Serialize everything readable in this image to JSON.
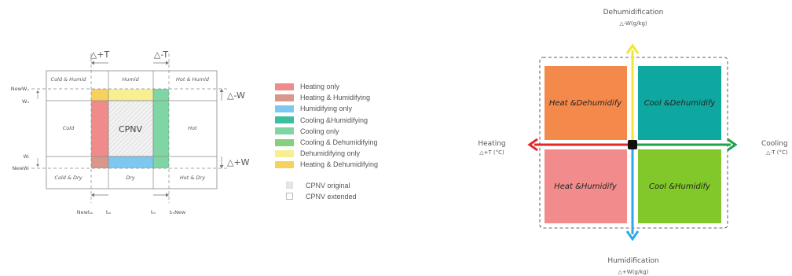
{
  "left_diagram": {
    "delta_plus_t": "△+T",
    "delta_minus_t": "△-T",
    "delta_minus_w": "△-W",
    "delta_plus_w": "△+W",
    "zones": {
      "cold_humid": "Cold & Humid",
      "humid": "Humid",
      "hot_humid": "Hot & Humid",
      "cold": "Cold",
      "cpnv": "CPNV",
      "hot": "Hot",
      "cold_dry": "Cold & Dry",
      "dry": "Dry",
      "hot_dry": "Hot & Dry"
    },
    "y_labels": {
      "new_wu": "NewWᵤ",
      "wu": "Wᵤ",
      "wl": "Wₗ",
      "new_wl": "NewWₗ"
    },
    "x_labels": {
      "new_tlo": "Newtₗₒ",
      "tlo": "tₗₒ",
      "thi": "tₕᵢ",
      "thi_new": "tₕᵢNew"
    }
  },
  "legend": {
    "items": [
      {
        "label": "Heating only",
        "color": "#f08b8b"
      },
      {
        "label": "Heating & Humidifying",
        "color": "#d9968a"
      },
      {
        "label": "Humidifying only",
        "color": "#7cc8f0"
      },
      {
        "label": "Cooling &Humidifying",
        "color": "#3cbfa0"
      },
      {
        "label": "Cooling only",
        "color": "#7fd6a4"
      },
      {
        "label": "Cooling & Dehumidifying",
        "color": "#86cf7e"
      },
      {
        "label": "Dehumidifying only",
        "color": "#f7ef92"
      },
      {
        "label": "Heating & Dehumidifying",
        "color": "#f5d25e"
      }
    ],
    "cpnv_original": "CPNV original",
    "cpnv_extended": "CPNV extended"
  },
  "right_diagram": {
    "top_title": "Dehumidification",
    "top_sub": "△-W(g/kg)",
    "bottom_title": "Humidification",
    "bottom_sub": "△+W(g/kg)",
    "left_title": "Heating",
    "left_sub": "△+T (°C)",
    "right_title": "Cooling",
    "right_sub": "△-T (°C)",
    "quadrants": {
      "top_left": {
        "label": "Heat &Dehumidify",
        "color": "#f4894c"
      },
      "top_right": {
        "label": "Cool &Dehumidify",
        "color": "#0fa8a0"
      },
      "bottom_left": {
        "label": "Heat &Humidify",
        "color": "#f28c8c"
      },
      "bottom_right": {
        "label": "Cool &Humidify",
        "color": "#82c82a"
      }
    },
    "arrow_colors": {
      "up": "#f2e635",
      "down": "#2aa9e8",
      "left": "#e02a2a",
      "right": "#1fa34a"
    }
  }
}
